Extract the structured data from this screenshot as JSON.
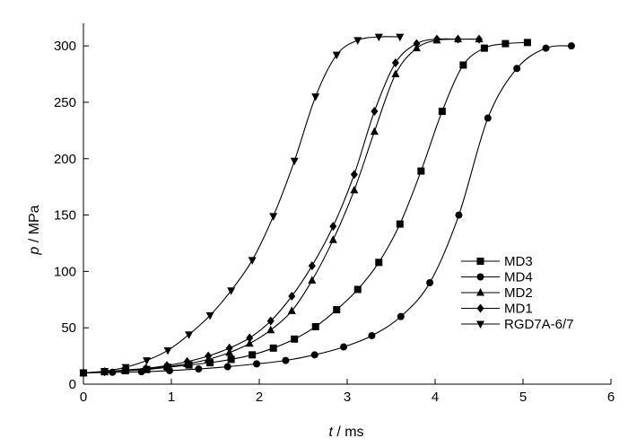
{
  "chart_data": {
    "type": "line",
    "xlabel": {
      "var": "t",
      "unit": " / ms"
    },
    "ylabel": {
      "var": "p",
      "unit": " / MPa"
    },
    "xlim": [
      0,
      6
    ],
    "ylim": [
      0,
      320
    ],
    "xticks": [
      "0",
      "1",
      "2",
      "3",
      "4",
      "5",
      "6"
    ],
    "yticks": [
      "0",
      "50",
      "100",
      "150",
      "200",
      "250",
      "300"
    ],
    "grid": false,
    "legend_position": "right",
    "series": [
      {
        "name": "MD3",
        "marker": "square",
        "x": [
          0,
          0.24,
          0.48,
          0.72,
          0.96,
          1.2,
          1.44,
          1.68,
          1.92,
          2.16,
          2.4,
          2.64,
          2.88,
          3.12,
          3.36,
          3.6,
          3.84,
          4.08,
          4.32,
          4.56,
          4.8,
          5.05
        ],
        "y": [
          10,
          11,
          12,
          13,
          15,
          17,
          19,
          22,
          26,
          32,
          40,
          51,
          66,
          84,
          108,
          142,
          189,
          242,
          283,
          298,
          302,
          303
        ]
      },
      {
        "name": "MD4",
        "marker": "circle",
        "x": [
          0,
          0.33,
          0.66,
          0.98,
          1.31,
          1.64,
          1.97,
          2.3,
          2.63,
          2.96,
          3.28,
          3.61,
          3.94,
          4.27,
          4.6,
          4.93,
          5.26,
          5.55
        ],
        "y": [
          10,
          10.5,
          11,
          12,
          13.5,
          15.5,
          18,
          21,
          26,
          33,
          43,
          60,
          90,
          150,
          236,
          280,
          298,
          300
        ]
      },
      {
        "name": "MD2",
        "marker": "triangle-up",
        "x": [
          0,
          0.24,
          0.47,
          0.71,
          0.95,
          1.18,
          1.42,
          1.66,
          1.89,
          2.13,
          2.37,
          2.6,
          2.84,
          3.08,
          3.31,
          3.55,
          3.79,
          4.02,
          4.26,
          4.5
        ],
        "y": [
          10,
          11,
          12,
          13.5,
          15.5,
          18,
          22,
          28,
          36,
          48,
          65,
          92,
          128,
          172,
          224,
          275,
          298,
          305,
          306,
          306
        ]
      },
      {
        "name": "MD1",
        "marker": "diamond",
        "x": [
          0,
          0.24,
          0.47,
          0.71,
          0.95,
          1.18,
          1.42,
          1.66,
          1.89,
          2.13,
          2.37,
          2.6,
          2.84,
          3.08,
          3.31,
          3.55,
          3.79,
          4.02,
          4.26,
          4.5
        ],
        "y": [
          10,
          11,
          12.5,
          14,
          16.5,
          20,
          25,
          32,
          41,
          56,
          78,
          105,
          140,
          186,
          242,
          285,
          302,
          306,
          306,
          306
        ]
      },
      {
        "name": "RGD7A-6/7",
        "marker": "triangle-down",
        "x": [
          0,
          0.24,
          0.48,
          0.72,
          0.96,
          1.2,
          1.44,
          1.68,
          1.92,
          2.16,
          2.4,
          2.64,
          2.88,
          3.12,
          3.36,
          3.6
        ],
        "y": [
          10,
          11.5,
          15,
          21,
          30,
          44,
          61,
          83,
          110,
          149,
          198,
          255,
          292,
          305,
          308,
          308
        ]
      }
    ]
  }
}
